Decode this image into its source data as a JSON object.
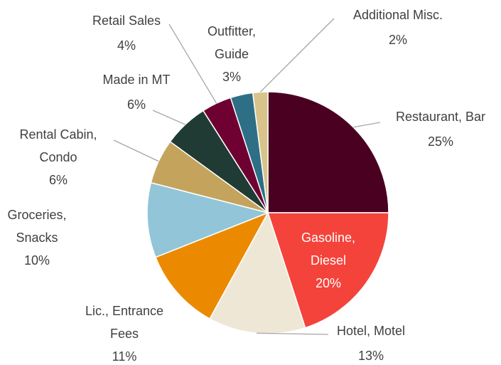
{
  "chart_data": {
    "type": "pie",
    "categories": [
      "Restaurant, Bar",
      "Gasoline, Diesel",
      "Hotel, Motel",
      "Lic., Entrance Fees",
      "Groceries, Snacks",
      "Rental Cabin, Condo",
      "Made in MT",
      "Retail Sales",
      "Outfitter, Guide",
      "Additional Misc."
    ],
    "values": [
      25,
      20,
      13,
      11,
      10,
      6,
      6,
      4,
      3,
      2
    ],
    "value_labels": [
      "25%",
      "20%",
      "13%",
      "11%",
      "10%",
      "6%",
      "6%",
      "4%",
      "3%",
      "2%"
    ],
    "colors": [
      "#4a0020",
      "#f4433b",
      "#efe7d6",
      "#eb8a00",
      "#92c5d8",
      "#c4a45c",
      "#1f3b34",
      "#6e0032",
      "#2e6f86",
      "#d8c38a"
    ]
  }
}
